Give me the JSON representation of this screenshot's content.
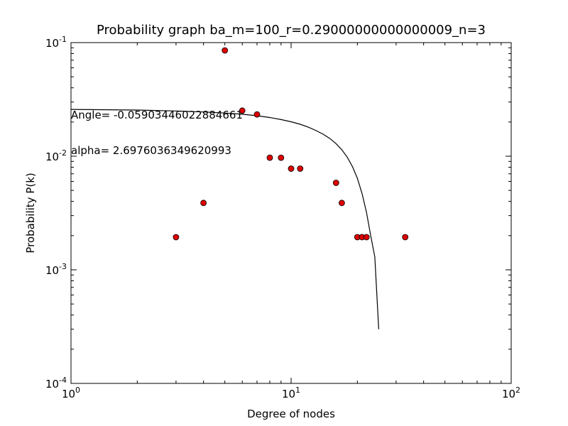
{
  "chart_data": {
    "type": "scatter",
    "title": "Probability graph ba_m=100_r=0.29000000000000009_n=3",
    "xlabel": "Degree of nodes",
    "ylabel": "Probability P(k)",
    "xscale": "log",
    "yscale": "log",
    "xlim": [
      1,
      100
    ],
    "ylim": [
      0.0001,
      0.1
    ],
    "x_ticks": [
      {
        "value": 1,
        "base": "10",
        "exp": "0"
      },
      {
        "value": 10,
        "base": "10",
        "exp": "1"
      },
      {
        "value": 100,
        "base": "10",
        "exp": "2"
      }
    ],
    "y_ticks": [
      {
        "value": 0.0001,
        "base": "10",
        "exp": "-4"
      },
      {
        "value": 0.001,
        "base": "10",
        "exp": "-3"
      },
      {
        "value": 0.01,
        "base": "10",
        "exp": "-2"
      },
      {
        "value": 0.1,
        "base": "10",
        "exp": "-1"
      }
    ],
    "grid": false,
    "points": {
      "color": "#dd0000",
      "x": [
        3,
        4,
        5,
        6,
        7,
        8,
        9,
        10,
        11,
        16,
        17,
        20,
        21,
        22,
        33
      ],
      "y": [
        0.00194,
        0.00388,
        0.0854,
        0.0252,
        0.0233,
        0.0097,
        0.0097,
        0.00777,
        0.00777,
        0.00583,
        0.00388,
        0.00194,
        0.00194,
        0.00194,
        0.00194
      ]
    },
    "fit_line": {
      "color": "#000000",
      "x": [
        1,
        2,
        3,
        4,
        5,
        6,
        7,
        8,
        9,
        10,
        11,
        12,
        13,
        14,
        15,
        16,
        17,
        18,
        19,
        20,
        21,
        22,
        23,
        24,
        25
      ],
      "y": [
        0.0258,
        0.0255,
        0.025,
        0.0245,
        0.024,
        0.0234,
        0.0227,
        0.0219,
        0.021,
        0.0201,
        0.0191,
        0.018,
        0.0168,
        0.0156,
        0.0143,
        0.0129,
        0.0114,
        0.0098,
        0.0081,
        0.0064,
        0.0047,
        0.0032,
        0.002,
        0.0013,
        0.0003
      ]
    },
    "annotations": [
      {
        "text": "Angle= -0.05903446022884661"
      },
      {
        "text": "alpha= 2.6976036349620993"
      }
    ]
  }
}
